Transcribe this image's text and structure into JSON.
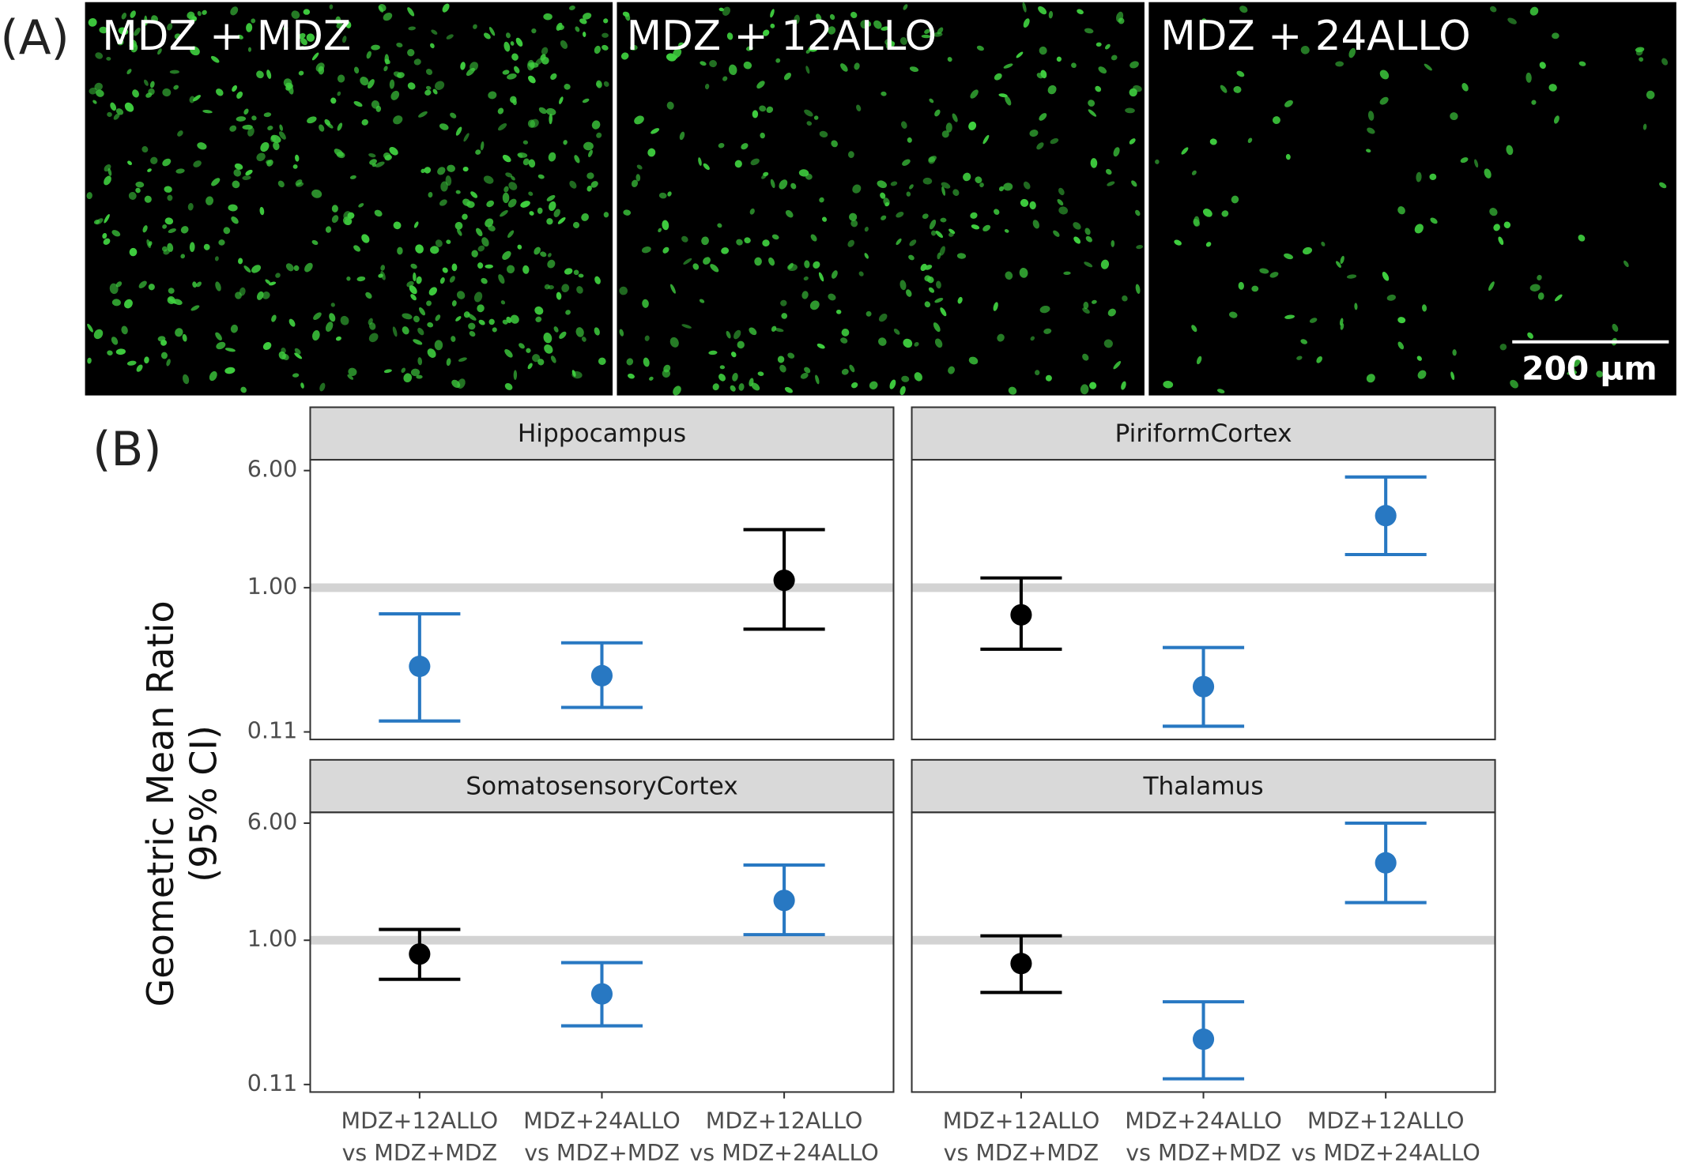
{
  "figure": {
    "panel_labels": [
      "(A)",
      "(B)"
    ],
    "images": [
      "MDZ + MDZ",
      "MDZ + 12ALLO",
      "MDZ + 24ALLO"
    ],
    "scale_bar": "200 µm"
  },
  "chart_data": {
    "type": "errorbar",
    "ylabel": [
      "Geometric Mean Ratio",
      "(95% CI)"
    ],
    "categories": [
      [
        "MDZ+12ALLO",
        "vs MDZ+MDZ"
      ],
      [
        "MDZ+24ALLO",
        "vs MDZ+MDZ"
      ],
      [
        "MDZ+12ALLO",
        "vs MDZ+24ALLO"
      ]
    ],
    "log_y": true,
    "ylim": [
      0.098,
      7.08
    ],
    "yticks": [
      {
        "value": 0.11,
        "label": "0.11"
      },
      {
        "value": 1,
        "label": "1.00"
      },
      {
        "value": 6,
        "label": "6.00"
      }
    ],
    "reference_line": 1,
    "facets": [
      {
        "title": "Hippocampus",
        "values": [
          0.3,
          0.26,
          1.12
        ],
        "lower": [
          0.13,
          0.16,
          0.53
        ],
        "upper": [
          0.67,
          0.43,
          2.43
        ],
        "colors": [
          "#2878c2",
          "#2878c2",
          "#000000"
        ]
      },
      {
        "title": "PiriformCortex",
        "values": [
          0.66,
          0.22,
          3.01
        ],
        "lower": [
          0.39,
          0.12,
          1.66
        ],
        "upper": [
          1.16,
          0.4,
          5.44
        ],
        "colors": [
          "#000000",
          "#2878c2",
          "#2878c2"
        ]
      },
      {
        "title": "SomatosensoryCortex",
        "values": [
          0.81,
          0.44,
          1.84
        ],
        "lower": [
          0.55,
          0.27,
          1.09
        ],
        "upper": [
          1.18,
          0.71,
          3.16
        ],
        "colors": [
          "#000000",
          "#2878c2",
          "#2878c2"
        ]
      },
      {
        "title": "Thalamus",
        "values": [
          0.7,
          0.22,
          3.27
        ],
        "lower": [
          0.45,
          0.12,
          1.78
        ],
        "upper": [
          1.07,
          0.39,
          6.0
        ],
        "colors": [
          "#000000",
          "#2878c2",
          "#2878c2"
        ]
      }
    ]
  }
}
